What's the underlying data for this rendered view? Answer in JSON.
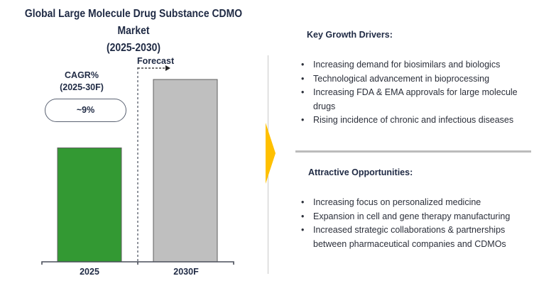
{
  "chart_data": {
    "type": "bar",
    "title": "Global Large Molecule Drug Substance CDMO Market",
    "subtitle": "(2025-2030)",
    "categories": [
      "2025",
      "2030F"
    ],
    "values": [
      1.0,
      1.6
    ],
    "value_unit": "relative market size (unlabeled)",
    "ylim": [
      0,
      1.65
    ],
    "xlabel": "",
    "ylabel": "",
    "grid": false,
    "bar_colors": [
      "#339933",
      "#bfbfbf"
    ],
    "annotations": {
      "cagr_label_line1": "CAGR%",
      "cagr_label_line2": "(2025-30F)",
      "cagr_value": "~9%",
      "forecast_label": "Forecast"
    }
  },
  "panel": {
    "growth_drivers": {
      "heading": "Key Growth Drivers:",
      "items": [
        "Increasing demand for biosimilars and biologics",
        "Technological advancement in bioprocessing",
        "Increasing FDA & EMA approvals for large molecule drugs",
        "Rising incidence of chronic and infectious diseases"
      ]
    },
    "opportunities": {
      "heading": "Attractive Opportunities:",
      "items": [
        "Increasing focus on personalized medicine",
        "Expansion in cell and gene therapy manufacturing",
        "Increased strategic collaborations & partnerships between pharmaceutical companies and CDMOs"
      ]
    },
    "bullet_glyph": "•",
    "accent_color": "#ffc000"
  }
}
